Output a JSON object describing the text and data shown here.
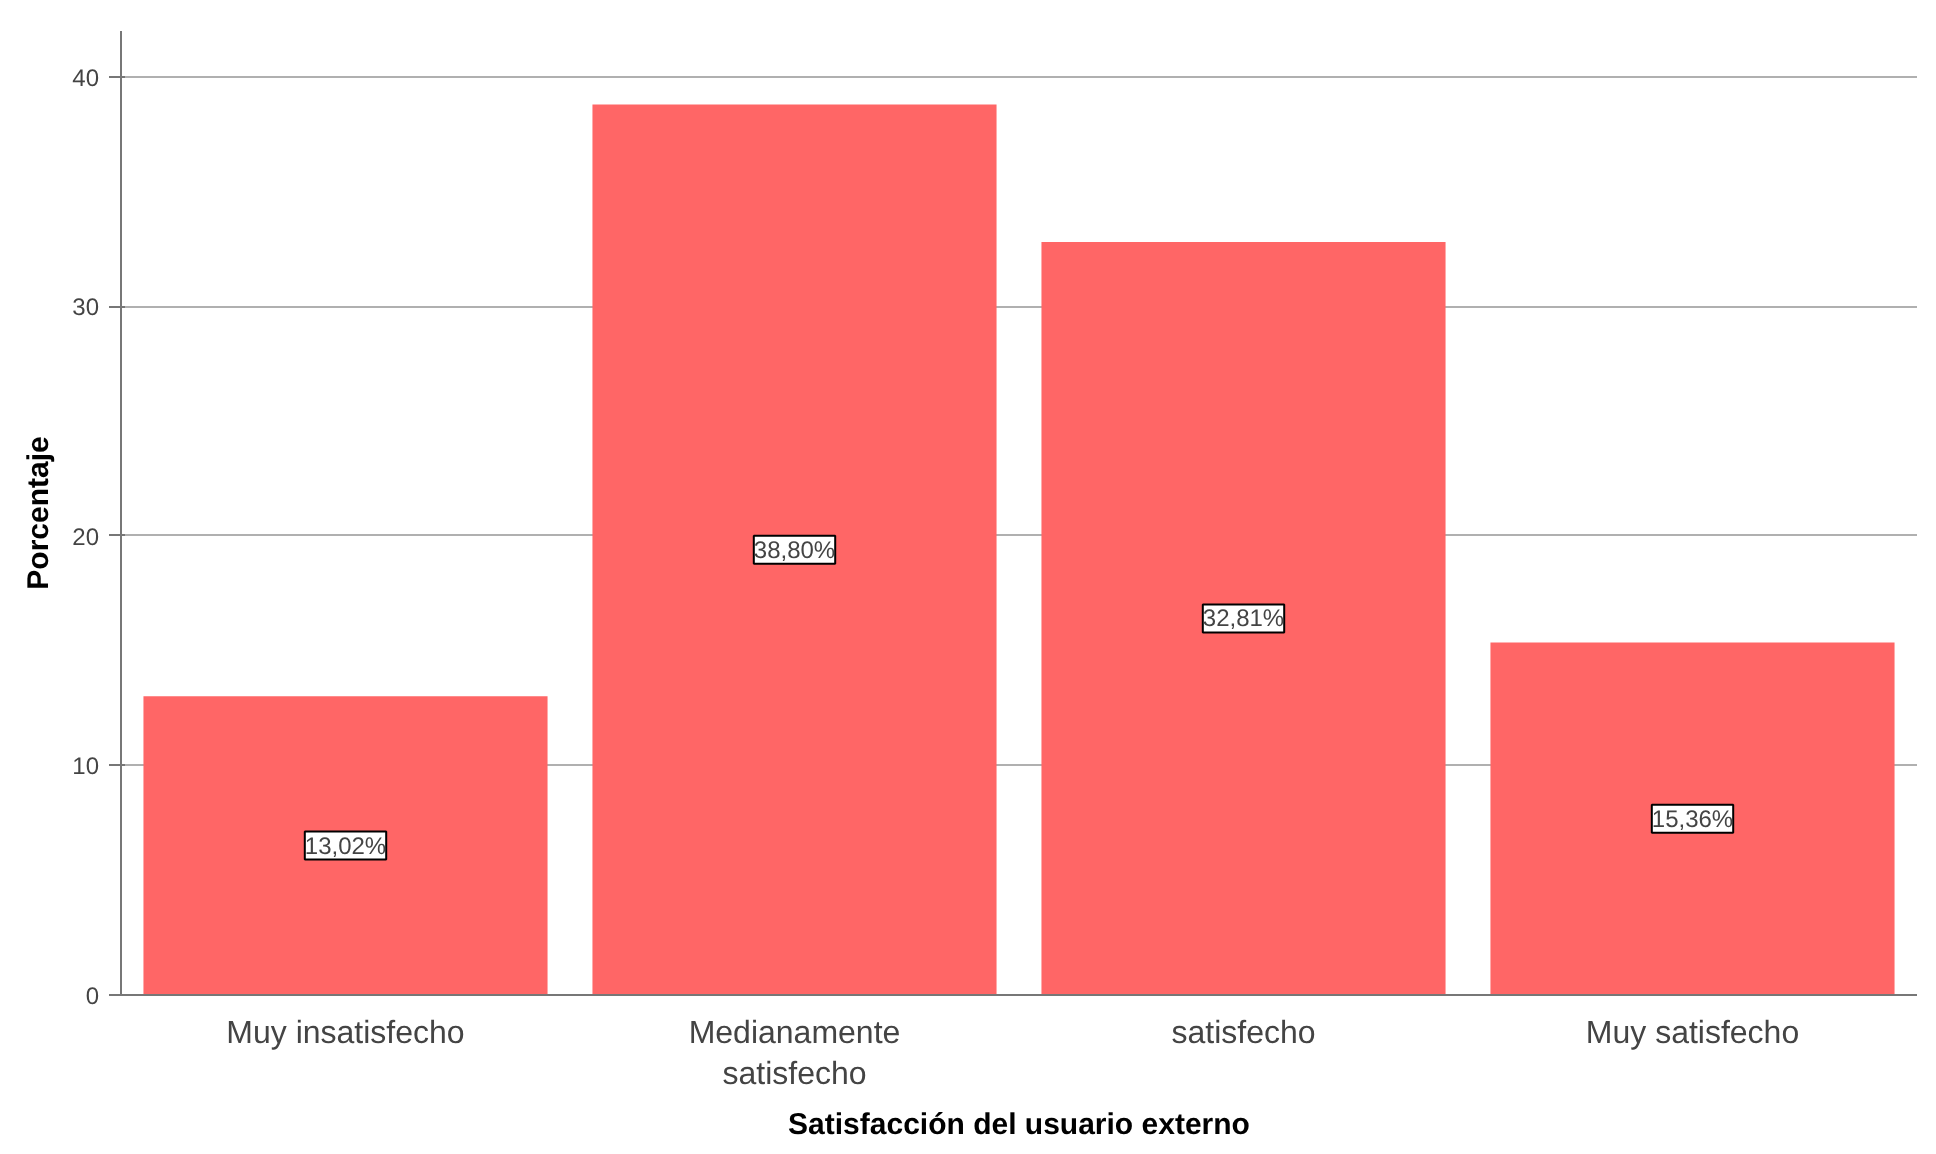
{
  "chart_data": {
    "type": "bar",
    "xlabel": "Satisfacción del usuario externo",
    "ylabel": "Porcentaje",
    "categories": [
      "Muy insatisfecho",
      "Medianamente\nsatisfecho",
      "satisfecho",
      "Muy satisfecho"
    ],
    "values": [
      13.02,
      38.8,
      32.81,
      15.36
    ],
    "color": "#ff6666",
    "value_labels": [
      "13,02%",
      "38,80%",
      "32,81%",
      "15,36%"
    ],
    "ylim": [
      0,
      42
    ],
    "yticks": [
      0,
      10,
      20,
      30,
      40
    ],
    "grid": "y"
  }
}
